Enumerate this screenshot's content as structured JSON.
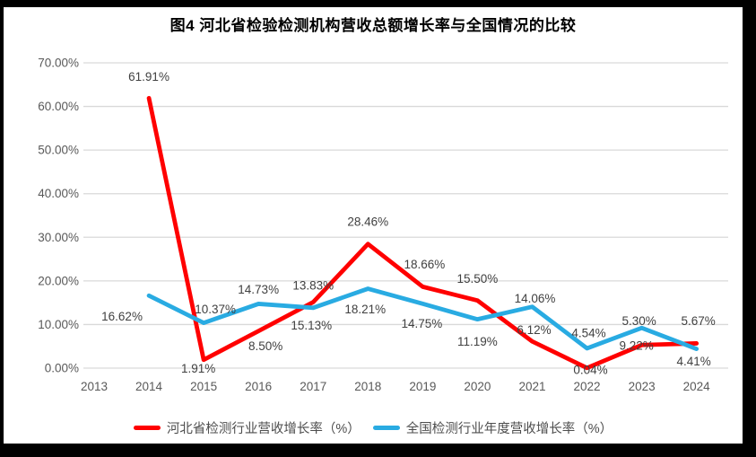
{
  "title": "图4 河北省检验检测机构营收总额增长率与全国情况的比较",
  "chart_data": {
    "type": "line",
    "title": "图4 河北省检验检测机构营收总额增长率与全国情况的比较",
    "categories": [
      "2013",
      "2014",
      "2015",
      "2016",
      "2017",
      "2018",
      "2019",
      "2020",
      "2021",
      "2022",
      "2023",
      "2024"
    ],
    "series": [
      {
        "name": "河北省检测行业营收增长率（%）",
        "color": "#FF0000",
        "values": [
          null,
          61.91,
          1.91,
          8.5,
          15.13,
          28.46,
          18.66,
          15.5,
          6.12,
          0.04,
          5.3,
          5.67
        ],
        "labels": [
          null,
          "61.91%",
          "1.91%",
          "8.50%",
          "15.13%",
          "28.46%",
          "18.66%",
          "15.50%",
          "6.12%",
          "0.04%",
          "5.30%",
          "5.67%"
        ]
      },
      {
        "name": "全国检测行业年度营收增长率（%）",
        "color": "#29ABE2",
        "values": [
          null,
          16.62,
          10.37,
          14.73,
          13.83,
          18.21,
          14.75,
          11.19,
          14.06,
          4.54,
          9.22,
          4.41
        ],
        "labels": [
          null,
          "16.62%",
          "10.37%",
          "14.73%",
          "13.83%",
          "18.21%",
          "14.75%",
          "11.19%",
          "14.06%",
          "4.54%",
          "9.22%",
          "4.41%"
        ]
      }
    ],
    "xlabel": "",
    "ylabel": "",
    "ylim": [
      0,
      70
    ],
    "y_ticks": [
      "0.00%",
      "10.00%",
      "20.00%",
      "30.00%",
      "40.00%",
      "50.00%",
      "60.00%",
      "70.00%"
    ],
    "grid": true,
    "legend_position": "bottom",
    "colors": {
      "gridline": "#D9D9D9",
      "axis_text": "#595959",
      "data_label_text": "#404040",
      "plot_background": "#FFFFFF",
      "outer_border": "#000000"
    }
  },
  "legend": {
    "items": [
      {
        "label": "河北省检测行业营收增长率（%）",
        "color": "#FF0000"
      },
      {
        "label": "全国检测行业年度营收增长率（%）",
        "color": "#29ABE2"
      }
    ]
  }
}
